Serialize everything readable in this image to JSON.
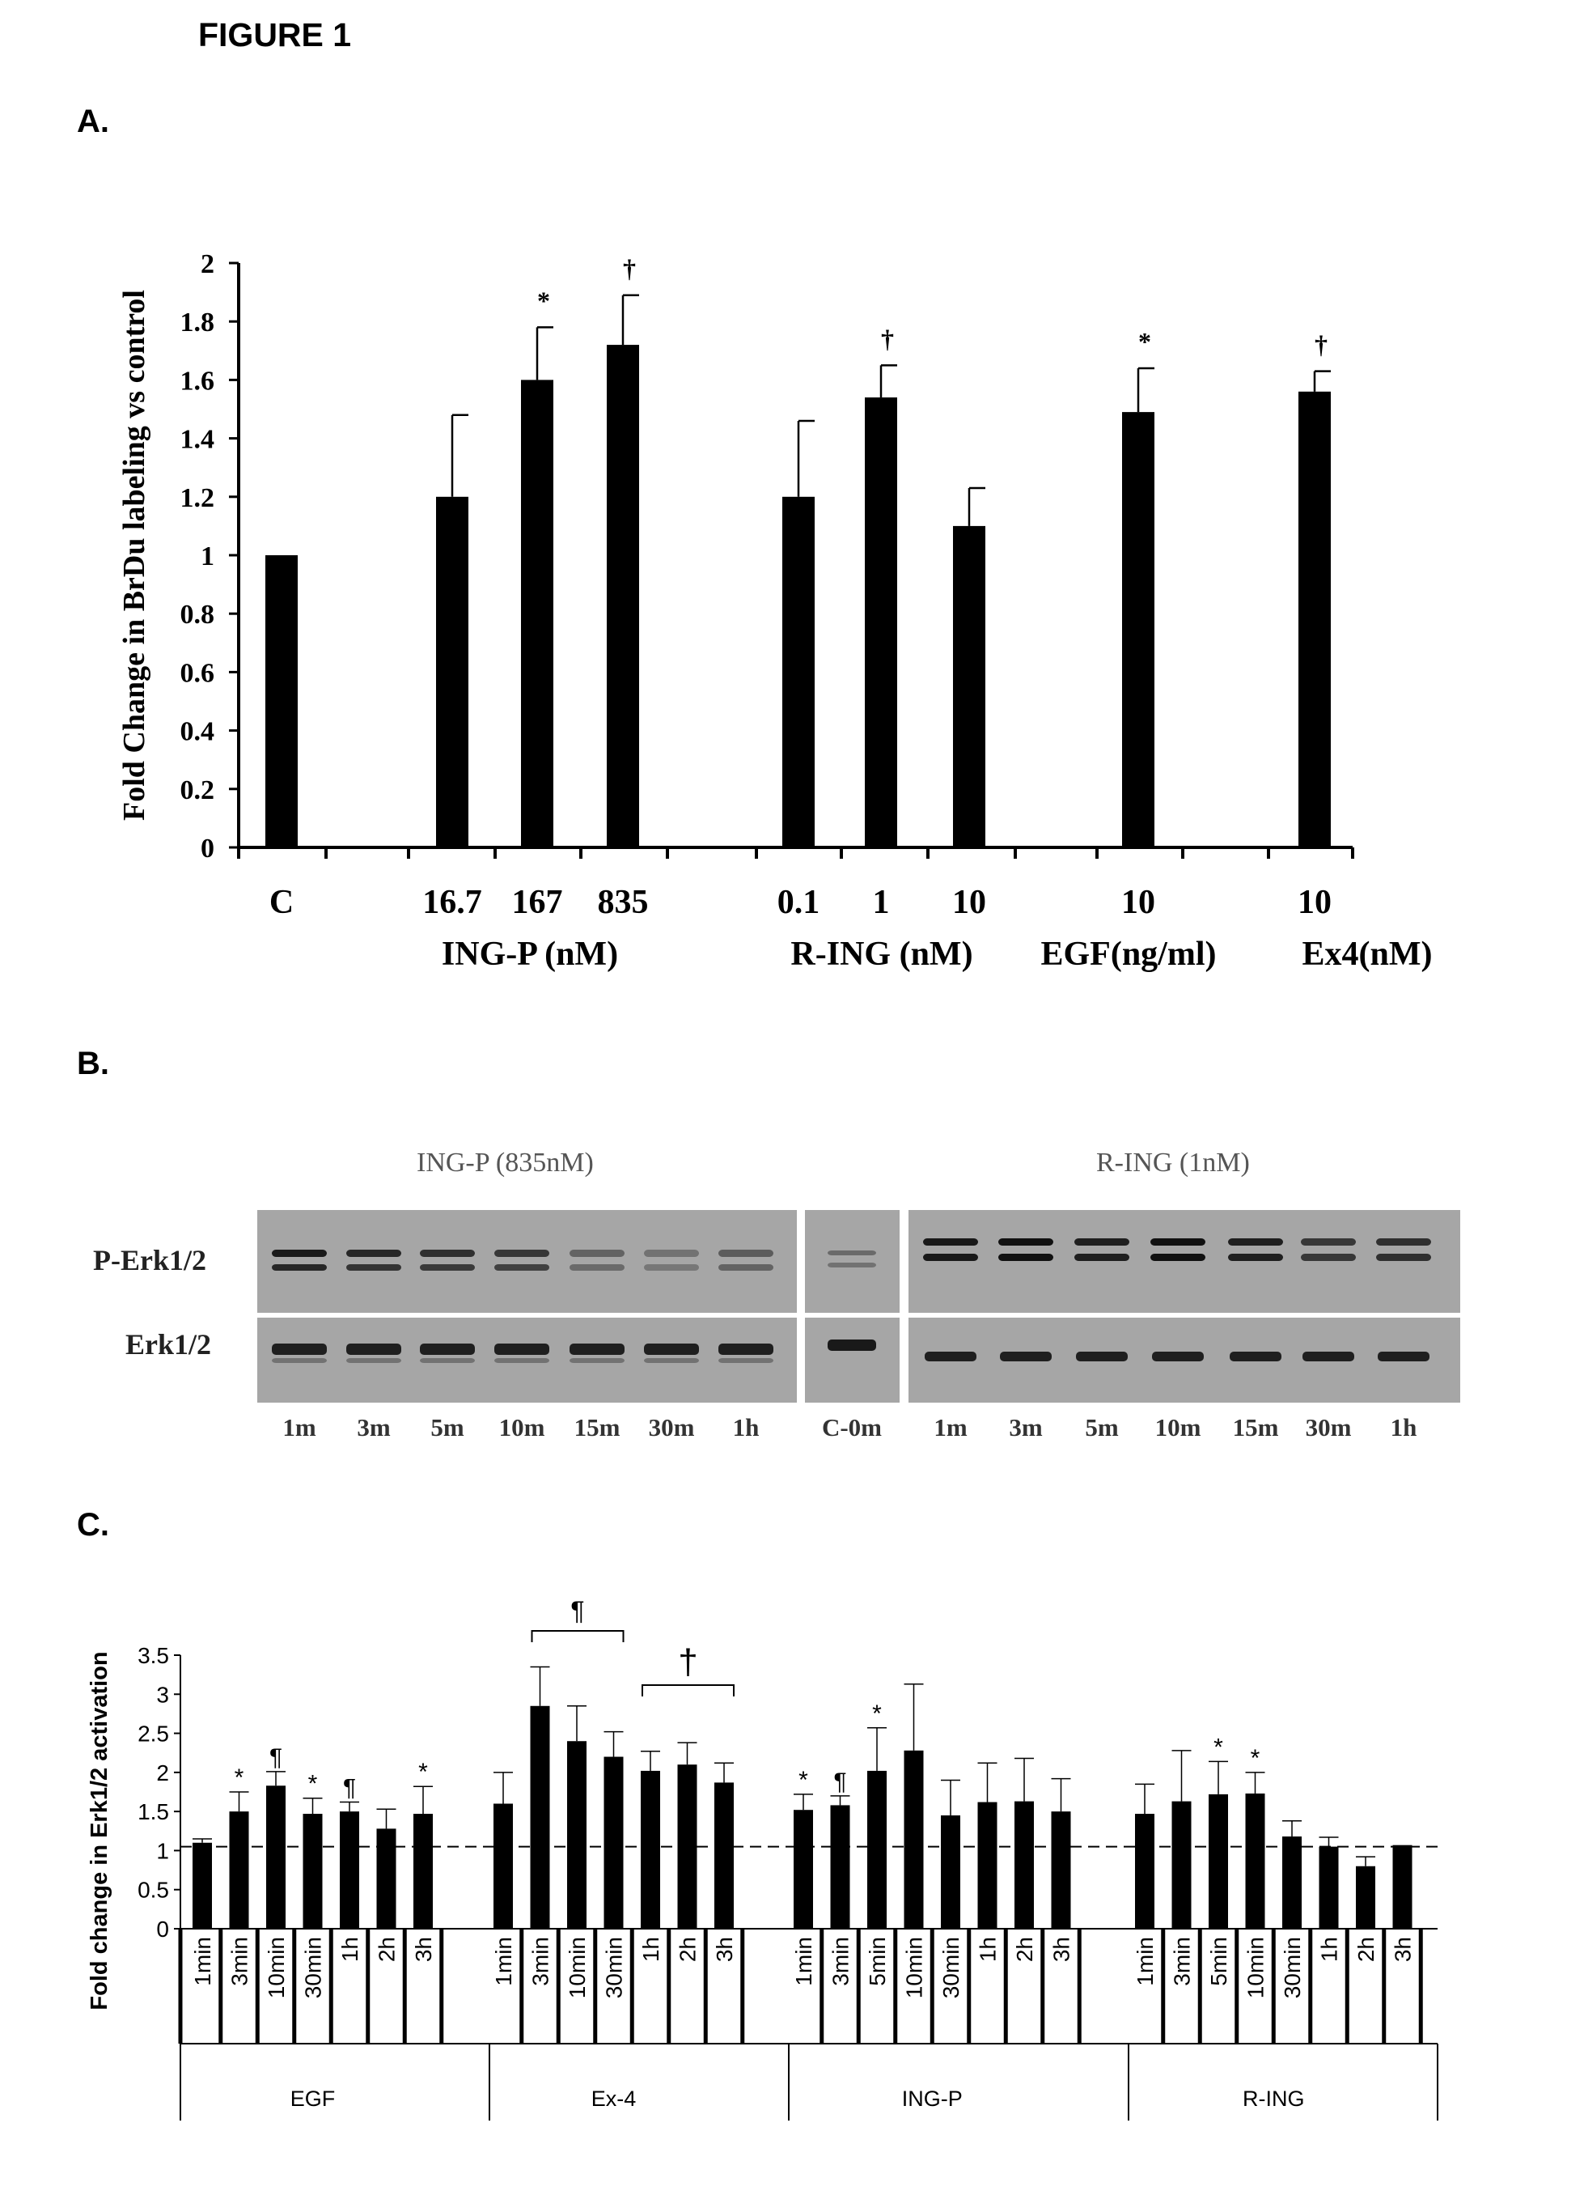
{
  "figure_title": "FIGURE 1",
  "panel_labels": [
    "A.",
    "B.",
    "C."
  ],
  "panel_b": {
    "header_left": "ING-P (835nM)",
    "header_right": "R-ING (1nM)",
    "row_labels": [
      "P-Erk1/2",
      "Erk1/2"
    ],
    "time_labels_left": [
      "1m",
      "3m",
      "5m",
      "10m",
      "15m",
      "30m",
      "1h"
    ],
    "control_label": "C-0m",
    "time_labels_right": [
      "1m",
      "3m",
      "5m",
      "10m",
      "15m",
      "30m",
      "1h"
    ]
  },
  "chart_data": [
    {
      "type": "bar",
      "ylabel": "Fold Change in BrDu labeling vs control",
      "ylim": [
        0,
        2
      ],
      "yticks": [
        "0",
        "0.2",
        "0.4",
        "0.6",
        "0.8",
        "1",
        "1.2",
        "1.4",
        "1.6",
        "1.8",
        "2"
      ],
      "groups": [
        {
          "name": "",
          "ticks": [
            "C"
          ],
          "values": [
            1.0
          ],
          "errors": [
            0
          ],
          "marks": [
            ""
          ]
        },
        {
          "name": "ING-P (nM)",
          "ticks": [
            "16.7",
            "167",
            "835"
          ],
          "values": [
            1.2,
            1.6,
            1.72
          ],
          "errors": [
            0.28,
            0.18,
            0.17
          ],
          "marks": [
            "",
            "*",
            "†"
          ]
        },
        {
          "name": "R-ING (nM)",
          "ticks": [
            "0.1",
            "1",
            "10"
          ],
          "values": [
            1.2,
            1.54,
            1.1
          ],
          "errors": [
            0.26,
            0.11,
            0.13
          ],
          "marks": [
            "",
            "†",
            ""
          ]
        },
        {
          "name": "EGF(ng/ml)",
          "ticks": [
            "10"
          ],
          "values": [
            1.49
          ],
          "errors": [
            0.15
          ],
          "marks": [
            "*"
          ]
        },
        {
          "name": "Ex4(nM)",
          "ticks": [
            "10"
          ],
          "values": [
            1.56
          ],
          "errors": [
            0.07
          ],
          "marks": [
            "†"
          ]
        }
      ]
    },
    {
      "type": "bar",
      "ylabel": "Fold change in Erk1/2 activation",
      "ylim": [
        0,
        3.5
      ],
      "yticks": [
        "0",
        "0.5",
        "1",
        "1.5",
        "2",
        "2.5",
        "3",
        "3.5"
      ],
      "reference_line": 1.05,
      "groups": [
        {
          "name": "EGF",
          "categories": [
            "1min",
            "3min",
            "10min",
            "30min",
            "1h",
            "2h",
            "3h"
          ],
          "values": [
            1.1,
            1.5,
            1.83,
            1.47,
            1.5,
            1.28,
            1.47
          ],
          "errors": [
            0.05,
            0.25,
            0.18,
            0.2,
            0.12,
            0.25,
            0.35
          ],
          "marks": [
            "",
            "*",
            "¶",
            "*",
            "¶",
            "",
            "*"
          ]
        },
        {
          "name": "Ex-4",
          "categories": [
            "1min",
            "3min",
            "10min",
            "30min",
            "1h",
            "2h",
            "3h"
          ],
          "values": [
            1.6,
            2.85,
            2.4,
            2.2,
            2.02,
            2.1,
            1.87
          ],
          "errors": [
            0.4,
            0.5,
            0.45,
            0.32,
            0.25,
            0.28,
            0.25
          ],
          "marks": [
            "",
            "",
            "",
            "",
            "",
            "",
            ""
          ]
        },
        {
          "name": "ING-P",
          "categories": [
            "1min",
            "3min",
            "5min",
            "10min",
            "30min",
            "1h",
            "2h",
            "3h"
          ],
          "values": [
            1.52,
            1.58,
            2.02,
            2.28,
            1.45,
            1.62,
            1.63,
            1.5
          ],
          "errors": [
            0.2,
            0.12,
            0.55,
            0.85,
            0.45,
            0.5,
            0.55,
            0.42
          ],
          "marks": [
            "*",
            "¶",
            "*",
            "",
            "",
            "",
            "",
            ""
          ]
        },
        {
          "name": "R-ING",
          "categories": [
            "1min",
            "3min",
            "5min",
            "10min",
            "30min",
            "1h",
            "2h",
            "3h"
          ],
          "values": [
            1.47,
            1.63,
            1.72,
            1.73,
            1.18,
            1.05,
            0.8,
            1.07
          ],
          "errors": [
            0.38,
            0.65,
            0.42,
            0.27,
            0.2,
            0.12,
            0.12,
            0
          ],
          "marks": [
            "",
            "",
            "*",
            "*",
            "",
            "",
            "",
            ""
          ]
        }
      ],
      "brackets": [
        {
          "label": "¶",
          "group": 1,
          "from": 1,
          "to": 3
        },
        {
          "label": "†",
          "group": 1,
          "from": 4,
          "to": 6
        }
      ]
    }
  ]
}
